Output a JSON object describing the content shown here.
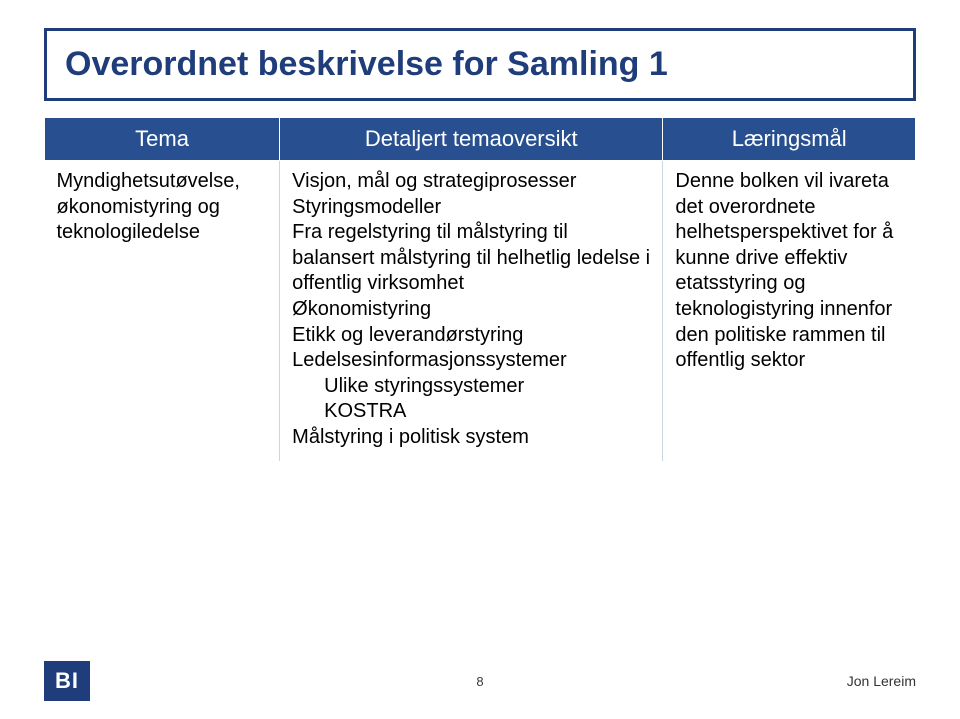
{
  "title": "Overordnet beskrivelse for Samling 1",
  "headers": {
    "col1": "Tema",
    "col2": "Detaljert temaoversikt",
    "col3": "Læringsmål"
  },
  "row": {
    "tema": "Myndighetsutøvelse, økonomistyring og teknologiledelse",
    "detaljert": {
      "l1": "Visjon, mål og strategiprosesser",
      "l2": "Styringsmodeller",
      "l3": "Fra regelstyring til målstyring til balansert målstyring til helhetlig ledelse i offentlig virksomhet",
      "l4": "Økonomistyring",
      "l5": "Etikk og leverandørstyring",
      "l6": "Ledelsesinformasjonssystemer",
      "l6a": "Ulike styringssystemer",
      "l6b": "KOSTRA",
      "l7": "Målstyring i politisk system"
    },
    "laering": "Denne bolken vil ivareta det overordnete helhetsperspektivet for å kunne drive effektiv etatsstyring og teknologistyring innenfor den politiske rammen til offentlig sektor"
  },
  "footer": {
    "logo": "BI",
    "page": "8",
    "author": "Jon Lereim"
  },
  "colors": {
    "brand": "#1f3d7a",
    "header_bg": "#285090",
    "header_fg": "#ffffff",
    "text": "#000000",
    "bg": "#ffffff",
    "cell_border": "#cfd6e3"
  }
}
